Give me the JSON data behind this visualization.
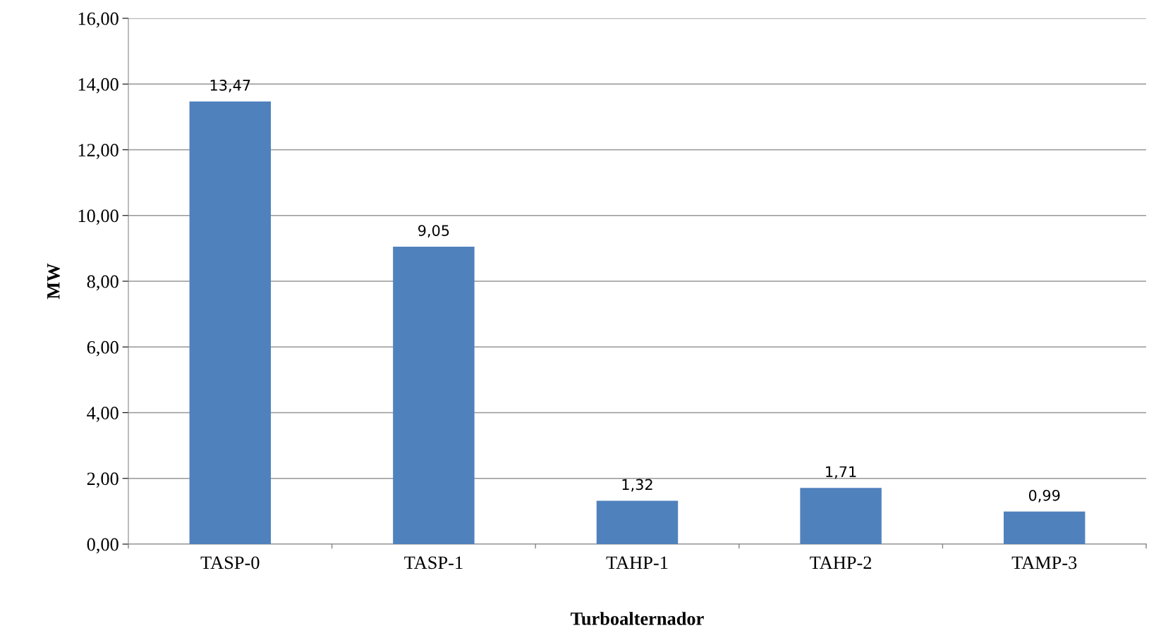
{
  "chart_data": {
    "type": "bar",
    "xlabel": "Turboalternador",
    "ylabel": "MW",
    "categories": [
      "TASP-0",
      "TASP-1",
      "TAHP-1",
      "TAHP-2",
      "TAMP-3"
    ],
    "values": [
      13.47,
      9.05,
      1.32,
      1.71,
      0.99
    ],
    "value_labels": [
      "13,47",
      "9,05",
      "1,32",
      "1,71",
      "0,99"
    ],
    "color": "#4f81bd",
    "ylim": [
      0,
      16
    ],
    "yticks": [
      {
        "value": 0,
        "label": "0,00"
      },
      {
        "value": 2,
        "label": "2,00"
      },
      {
        "value": 4,
        "label": "4,00"
      },
      {
        "value": 6,
        "label": "6,00"
      },
      {
        "value": 8,
        "label": "8,00"
      },
      {
        "value": 10,
        "label": "10,00"
      },
      {
        "value": 12,
        "label": "12,00"
      },
      {
        "value": 14,
        "label": "14,00"
      },
      {
        "value": 16,
        "label": "16,00"
      }
    ],
    "grid": "y",
    "legend": false
  }
}
